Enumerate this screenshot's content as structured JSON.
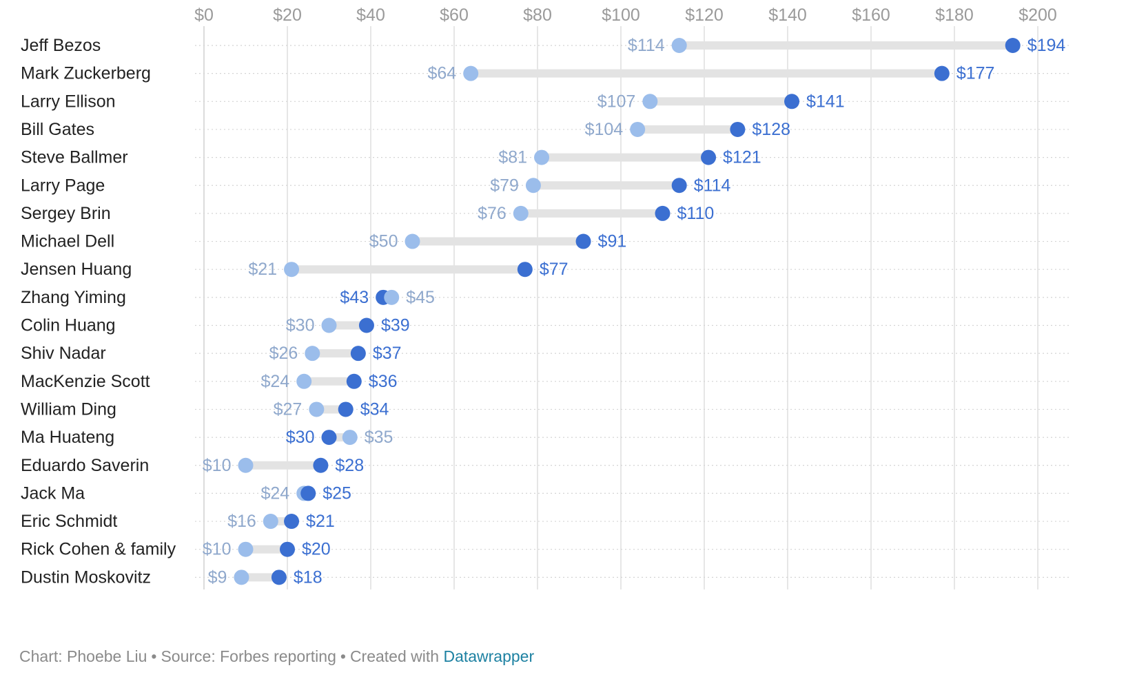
{
  "chart_data": {
    "type": "dot-range",
    "title": "",
    "xlabel": "",
    "ylabel": "",
    "xlim": [
      0,
      200
    ],
    "x_ticks": [
      0,
      20,
      40,
      60,
      80,
      100,
      120,
      140,
      160,
      180,
      200
    ],
    "x_tick_labels": [
      "$0",
      "$20",
      "$40",
      "$60",
      "$80",
      "$100",
      "$120",
      "$140",
      "$160",
      "$180",
      "$200"
    ],
    "series": [
      {
        "name": "start",
        "color": "#9bbdeb"
      },
      {
        "name": "end",
        "color": "#3b6fd1"
      }
    ],
    "rows": [
      {
        "name": "Jeff Bezos",
        "start": 114,
        "end": 194,
        "start_label": "$114",
        "end_label": "$194"
      },
      {
        "name": "Mark Zuckerberg",
        "start": 64,
        "end": 177,
        "start_label": "$64",
        "end_label": "$177"
      },
      {
        "name": "Larry Ellison",
        "start": 107,
        "end": 141,
        "start_label": "$107",
        "end_label": "$141"
      },
      {
        "name": "Bill Gates",
        "start": 104,
        "end": 128,
        "start_label": "$104",
        "end_label": "$128"
      },
      {
        "name": "Steve Ballmer",
        "start": 81,
        "end": 121,
        "start_label": "$81",
        "end_label": "$121"
      },
      {
        "name": "Larry Page",
        "start": 79,
        "end": 114,
        "start_label": "$79",
        "end_label": "$114"
      },
      {
        "name": "Sergey Brin",
        "start": 76,
        "end": 110,
        "start_label": "$76",
        "end_label": "$110"
      },
      {
        "name": "Michael Dell",
        "start": 50,
        "end": 91,
        "start_label": "$50",
        "end_label": "$91"
      },
      {
        "name": "Jensen Huang",
        "start": 21,
        "end": 77,
        "start_label": "$21",
        "end_label": "$77"
      },
      {
        "name": "Zhang Yiming",
        "start": 45,
        "end": 43,
        "start_label": "$45",
        "end_label": "$43"
      },
      {
        "name": "Colin Huang",
        "start": 30,
        "end": 39,
        "start_label": "$30",
        "end_label": "$39"
      },
      {
        "name": "Shiv Nadar",
        "start": 26,
        "end": 37,
        "start_label": "$26",
        "end_label": "$37"
      },
      {
        "name": "MacKenzie Scott",
        "start": 24,
        "end": 36,
        "start_label": "$24",
        "end_label": "$36"
      },
      {
        "name": "William Ding",
        "start": 27,
        "end": 34,
        "start_label": "$27",
        "end_label": "$34"
      },
      {
        "name": "Ma Huateng",
        "start": 35,
        "end": 30,
        "start_label": "$35",
        "end_label": "$30"
      },
      {
        "name": "Eduardo Saverin",
        "start": 10,
        "end": 28,
        "start_label": "$10",
        "end_label": "$28"
      },
      {
        "name": "Jack Ma",
        "start": 24,
        "end": 25,
        "start_label": "$24",
        "end_label": "$25"
      },
      {
        "name": "Eric Schmidt",
        "start": 16,
        "end": 21,
        "start_label": "$16",
        "end_label": "$21"
      },
      {
        "name": "Rick Cohen & family",
        "start": 10,
        "end": 20,
        "start_label": "$10",
        "end_label": "$20"
      },
      {
        "name": "Dustin Moskovitz",
        "start": 9,
        "end": 18,
        "start_label": "$9",
        "end_label": "$18"
      }
    ]
  },
  "colors": {
    "start_dot": "#9bbdeb",
    "end_dot": "#3b6fd1",
    "start_label": "#8fa8cc",
    "end_label": "#3b6fd1",
    "range_bar": "#e3e3e3",
    "grid": "#dddddd",
    "tick_label": "#9a9a9a",
    "name_label": "#222222"
  },
  "footer": {
    "author": "Chart: Phoebe Liu",
    "source": "Source: Forbes reporting",
    "created": "Created with",
    "tool": "Datawrapper",
    "separator": "•"
  }
}
